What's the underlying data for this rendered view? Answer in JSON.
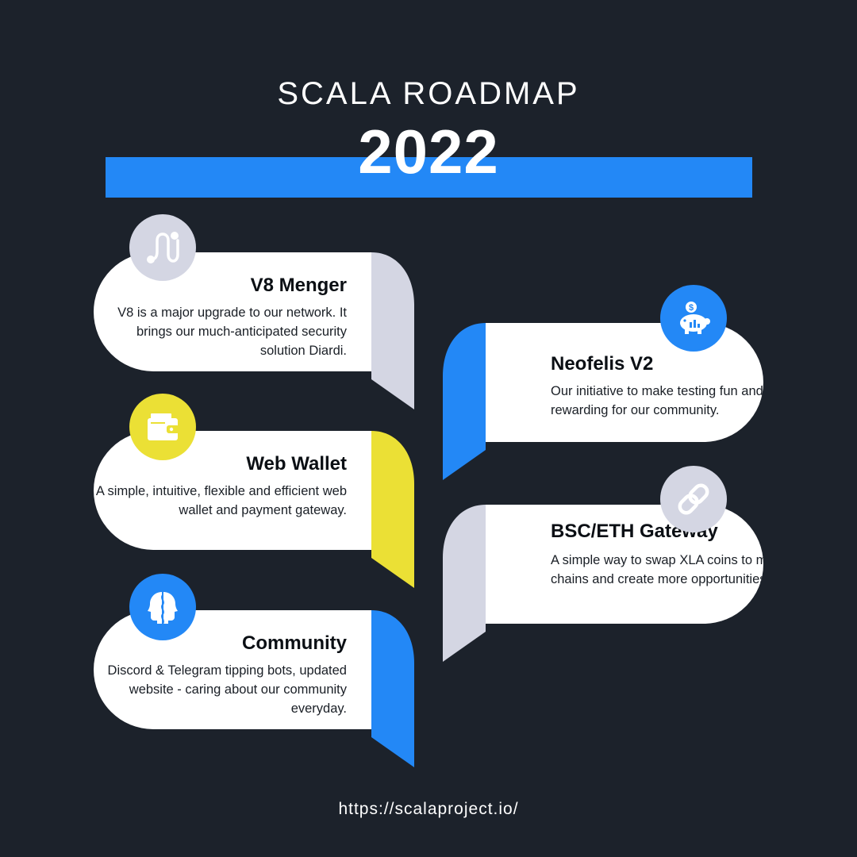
{
  "header": {
    "subtitle": "SCALA ROADMAP",
    "year": "2022"
  },
  "colors": {
    "background": "#1c222b",
    "blue": "#2388f6",
    "yellow": "#ebe035",
    "grey": "#d4d6e3",
    "card": "#ffffff"
  },
  "items": [
    {
      "title": "V8 Menger",
      "description": "V8 is a major upgrade to our network. It brings our much-anticipated security solution Diardi.",
      "icon": "route-icon",
      "accent": "grey"
    },
    {
      "title": "Web Wallet",
      "description": "A simple, intuitive, flexible and efficient web wallet and payment gateway.",
      "icon": "wallet-icon",
      "accent": "yellow"
    },
    {
      "title": "Community",
      "description": "Discord & Telegram tipping bots, updated website - caring about our community everyday.",
      "icon": "community-icon",
      "accent": "blue"
    },
    {
      "title": "Neofelis V2",
      "description": "Our initiative to make testing fun and rewarding for our community.",
      "icon": "piggy-bank-icon",
      "accent": "blue"
    },
    {
      "title": "BSC/ETH Gateway",
      "description": "A simple way to swap XLA coins to major chains and create more opportunities.",
      "icon": "link-icon",
      "accent": "grey"
    }
  ],
  "footer": {
    "url": "https://scalaproject.io/"
  }
}
